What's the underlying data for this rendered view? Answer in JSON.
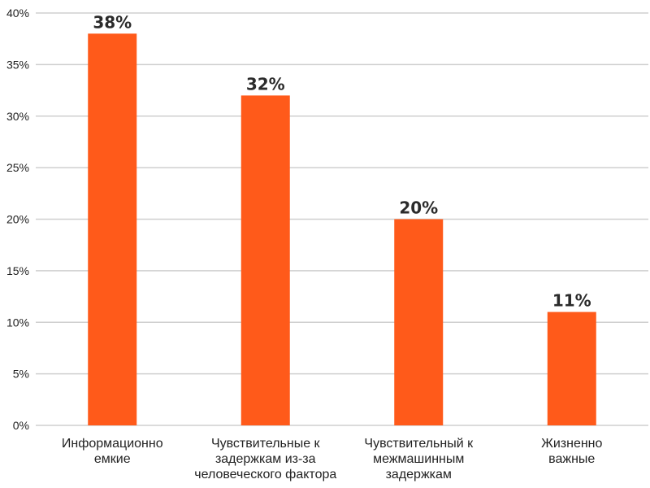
{
  "chart_data": {
    "type": "bar",
    "categories": [
      [
        "Информационно",
        "емкие"
      ],
      [
        "Чувствительные к",
        "задержкам из-за",
        "человеческого фактора"
      ],
      [
        "Чувствительный к",
        "межмашинным",
        "задержкам"
      ],
      [
        "Жизненно",
        "важные"
      ]
    ],
    "values": [
      38,
      32,
      20,
      11
    ],
    "data_labels": [
      "38%",
      "32%",
      "20%",
      "11%"
    ],
    "title": "",
    "xlabel": "",
    "ylabel": "",
    "ylim": [
      0,
      40
    ],
    "yticks": [
      0,
      5,
      10,
      15,
      20,
      25,
      30,
      35,
      40
    ],
    "ytick_labels": [
      "0%",
      "5%",
      "10%",
      "15%",
      "20%",
      "25%",
      "30%",
      "35%",
      "40%"
    ],
    "grid": true,
    "legend": "none",
    "bar_color": "#FF5A1A"
  }
}
